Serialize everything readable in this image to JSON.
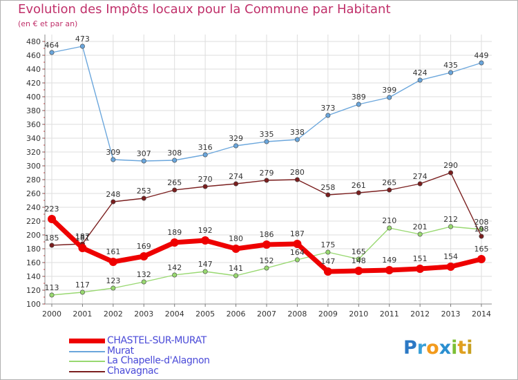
{
  "title": "Evolution des Impôts locaux pour la Commune par Habitant",
  "subtitle": "(en € et par an)",
  "logo": {
    "text": "Proxiti"
  },
  "chart_data": {
    "type": "line",
    "title": "Evolution des Impôts locaux pour la Commune par Habitant",
    "subtitle": "(en € et par an)",
    "xlabel": "",
    "ylabel": "",
    "ylim": [
      100,
      480
    ],
    "yticks": [
      100,
      120,
      140,
      160,
      180,
      200,
      220,
      240,
      260,
      280,
      300,
      320,
      340,
      360,
      380,
      400,
      420,
      440,
      460,
      480
    ],
    "x": [
      "2000",
      "2001",
      "2002",
      "2003",
      "2004",
      "2005",
      "2006",
      "2007",
      "2008",
      "2009",
      "2010",
      "2011",
      "2012",
      "2013",
      "2014"
    ],
    "grid": true,
    "legend_position": "bottom-left",
    "series": [
      {
        "name": "CHASTEL-SUR-MURAT",
        "color": "#ee0000",
        "values": [
          223,
          181,
          161,
          169,
          189,
          192,
          180,
          186,
          187,
          147,
          148,
          149,
          151,
          154,
          165
        ]
      },
      {
        "name": "Murat",
        "color": "#6aa6dc",
        "values": [
          464,
          473,
          309,
          307,
          308,
          316,
          329,
          335,
          338,
          373,
          389,
          399,
          424,
          435,
          449
        ]
      },
      {
        "name": "La Chapelle-d'Alagnon",
        "color": "#98d870",
        "values": [
          113,
          117,
          123,
          132,
          142,
          147,
          141,
          152,
          164,
          175,
          165,
          210,
          201,
          212,
          208
        ]
      },
      {
        "name": "Chavagnac",
        "color": "#7a1e1e",
        "values": [
          185,
          187,
          248,
          253,
          265,
          270,
          274,
          279,
          280,
          258,
          261,
          265,
          274,
          290,
          198
        ]
      }
    ]
  }
}
